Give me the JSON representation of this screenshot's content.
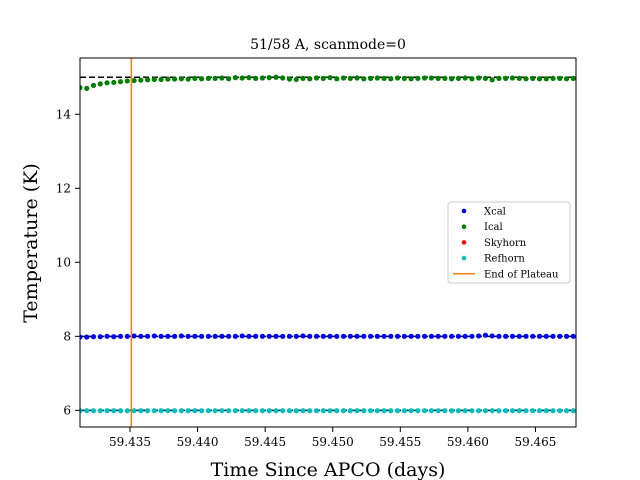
{
  "chart_data": {
    "type": "scatter",
    "title": "51/58 A, scanmode=0",
    "xlabel": "Time Since APCO (days)",
    "ylabel": "Temperature (K)",
    "xlim": [
      59.4313,
      59.468
    ],
    "ylim": [
      5.55,
      15.52
    ],
    "xticks": [
      59.435,
      59.44,
      59.445,
      59.45,
      59.455,
      59.46,
      59.465
    ],
    "xtick_labels": [
      "59.435",
      "59.440",
      "59.445",
      "59.450",
      "59.455",
      "59.460",
      "59.465"
    ],
    "yticks": [
      6,
      8,
      10,
      12,
      14
    ],
    "ytick_labels": [
      "6",
      "8",
      "10",
      "12",
      "14"
    ],
    "grid": false,
    "legend_position": "center-right",
    "x_start": 59.4313,
    "x_step": 0.0005,
    "n_points": 74,
    "series": [
      {
        "name": "Xcal",
        "color": "#0000ff",
        "values": [
          7.98,
          7.98,
          7.99,
          7.99,
          8.0,
          7.99,
          8.0,
          8.0,
          8.01,
          8.0,
          8.0,
          8.01,
          8.0,
          8.0,
          8.0,
          8.01,
          8.0,
          8.0,
          8.0,
          8.0,
          8.0,
          8.0,
          8.0,
          8.0,
          8.01,
          8.0,
          8.0,
          8.0,
          8.0,
          8.0,
          8.0,
          8.0,
          8.0,
          8.01,
          8.0,
          8.0,
          8.0,
          8.0,
          8.0,
          8.0,
          8.0,
          8.0,
          8.0,
          8.0,
          8.0,
          8.0,
          8.0,
          8.0,
          8.0,
          8.0,
          8.0,
          8.0,
          8.0,
          8.0,
          8.0,
          8.0,
          8.0,
          8.0,
          8.0,
          8.01,
          8.03,
          8.01,
          8.0,
          8.0,
          8.0,
          8.0,
          8.0,
          8.0,
          8.0,
          8.0,
          8.0,
          8.0,
          8.0,
          8.0
        ]
      },
      {
        "name": "Ical",
        "color": "#008000",
        "values": [
          14.72,
          14.7,
          14.78,
          14.82,
          14.85,
          14.86,
          14.88,
          14.9,
          14.91,
          14.92,
          14.93,
          14.94,
          14.94,
          14.95,
          14.95,
          14.96,
          14.95,
          14.97,
          14.96,
          14.97,
          14.97,
          14.98,
          14.96,
          14.99,
          14.98,
          14.99,
          14.97,
          14.98,
          14.99,
          15.0,
          14.98,
          14.95,
          14.94,
          14.97,
          14.96,
          14.98,
          14.97,
          14.99,
          14.96,
          14.98,
          14.97,
          14.98,
          14.96,
          14.97,
          14.98,
          14.97,
          14.96,
          14.98,
          14.97,
          14.96,
          14.97,
          14.98,
          14.98,
          14.97,
          14.97,
          14.96,
          14.97,
          14.98,
          14.96,
          14.98,
          14.97,
          14.93,
          14.97,
          14.97,
          14.98,
          14.97,
          14.96,
          14.97,
          14.96,
          14.96,
          14.97,
          14.97,
          14.96,
          14.97
        ]
      },
      {
        "name": "Skyhorn",
        "color": "#ff0000",
        "values": []
      },
      {
        "name": "Refhorn",
        "color": "#00bfbf",
        "values": [
          5.99,
          5.99,
          5.99,
          5.99,
          5.99,
          5.99,
          5.99,
          5.99,
          5.99,
          5.99,
          5.99,
          5.99,
          5.99,
          5.99,
          5.99,
          5.99,
          5.99,
          5.99,
          5.99,
          5.99,
          5.99,
          5.99,
          5.99,
          5.99,
          5.99,
          5.99,
          5.99,
          5.99,
          5.99,
          5.99,
          5.99,
          5.99,
          5.99,
          5.99,
          5.99,
          5.99,
          5.99,
          5.99,
          5.99,
          5.99,
          5.99,
          5.99,
          5.99,
          5.99,
          5.99,
          5.99,
          5.99,
          5.99,
          5.99,
          5.99,
          5.99,
          5.99,
          5.99,
          5.99,
          5.99,
          5.99,
          5.99,
          5.99,
          5.99,
          5.99,
          5.99,
          5.99,
          5.99,
          5.99,
          5.99,
          5.99,
          5.99,
          5.99,
          5.99,
          5.99,
          5.99,
          5.99,
          5.99,
          5.99
        ]
      }
    ],
    "end_of_plateau": {
      "name": "End of Plateau",
      "x": 59.4351,
      "color": "#ff7f0e"
    },
    "reference_lines": [
      {
        "y": 15.0,
        "color": "#000000",
        "style": "dashed"
      },
      {
        "y": 8.0,
        "color": "#000000",
        "style": "dashed"
      },
      {
        "y": 6.0,
        "color": "#000000",
        "style": "dashed"
      }
    ]
  }
}
